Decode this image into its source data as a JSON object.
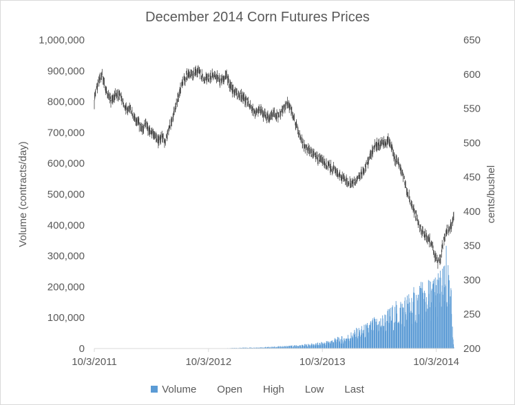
{
  "chart_data": {
    "type": "bar+stock",
    "title": "December 2014 Corn Futures Prices",
    "ylabel_left": "Volume (contracts/day)",
    "ylabel_right": "cents/bushel",
    "xlabel": "",
    "left_axis": {
      "min": 0,
      "max": 1000000,
      "ticks": [
        0,
        100000,
        200000,
        300000,
        400000,
        500000,
        600000,
        700000,
        800000,
        900000,
        1000000
      ],
      "tick_labels": [
        "0",
        "100,000",
        "200,000",
        "300,000",
        "400,000",
        "500,000",
        "600,000",
        "700,000",
        "800,000",
        "900,000",
        "1,000,000"
      ]
    },
    "right_axis": {
      "min": 200,
      "max": 650,
      "ticks": [
        200,
        250,
        300,
        350,
        400,
        450,
        500,
        550,
        600,
        650
      ],
      "tick_labels": [
        "200",
        "250",
        "300",
        "350",
        "400",
        "450",
        "500",
        "550",
        "600",
        "650"
      ]
    },
    "x_axis": {
      "start": "2011-10-03",
      "end": "2014-11-28",
      "ticks": [
        "2011-10-03",
        "2012-10-03",
        "2013-10-03",
        "2014-10-03"
      ],
      "tick_labels": [
        "10/3/2011",
        "10/3/2012",
        "10/3/2013",
        "10/3/2014"
      ]
    },
    "gridlines": false,
    "legend": {
      "position": "bottom",
      "entries": [
        {
          "name": "Volume",
          "color": "#5b9bd5"
        },
        {
          "name": "Open",
          "color": ""
        },
        {
          "name": "High",
          "color": ""
        },
        {
          "name": "Low",
          "color": ""
        },
        {
          "name": "Last",
          "color": ""
        }
      ]
    },
    "colors": {
      "volume": "#5b9bd5",
      "price": "#404040"
    },
    "price_path": [
      [
        "2011-10-03",
        560
      ],
      [
        "2011-10-10",
        580
      ],
      [
        "2011-10-20",
        592
      ],
      [
        "2011-10-28",
        600
      ],
      [
        "2011-11-10",
        575
      ],
      [
        "2011-11-25",
        562
      ],
      [
        "2011-12-10",
        570
      ],
      [
        "2011-12-28",
        568
      ],
      [
        "2012-01-10",
        552
      ],
      [
        "2012-01-25",
        548
      ],
      [
        "2012-02-05",
        540
      ],
      [
        "2012-02-20",
        530
      ],
      [
        "2012-03-05",
        518
      ],
      [
        "2012-03-15",
        528
      ],
      [
        "2012-03-28",
        515
      ],
      [
        "2012-04-05",
        512
      ],
      [
        "2012-04-15",
        508
      ],
      [
        "2012-04-25",
        503
      ],
      [
        "2012-05-05",
        510
      ],
      [
        "2012-05-15",
        502
      ],
      [
        "2012-05-28",
        518
      ],
      [
        "2012-06-10",
        535
      ],
      [
        "2012-06-25",
        560
      ],
      [
        "2012-07-05",
        580
      ],
      [
        "2012-07-15",
        590
      ],
      [
        "2012-07-25",
        598
      ],
      [
        "2012-08-05",
        602
      ],
      [
        "2012-08-15",
        600
      ],
      [
        "2012-08-28",
        605
      ],
      [
        "2012-09-10",
        600
      ],
      [
        "2012-09-20",
        593
      ],
      [
        "2012-10-03",
        595
      ],
      [
        "2012-10-15",
        598
      ],
      [
        "2012-11-01",
        594
      ],
      [
        "2012-11-15",
        590
      ],
      [
        "2012-11-30",
        598
      ],
      [
        "2012-12-10",
        585
      ],
      [
        "2012-12-20",
        575
      ],
      [
        "2013-01-05",
        570
      ],
      [
        "2013-01-20",
        568
      ],
      [
        "2013-02-05",
        560
      ],
      [
        "2013-02-15",
        552
      ],
      [
        "2013-03-01",
        545
      ],
      [
        "2013-03-15",
        550
      ],
      [
        "2013-03-31",
        540
      ],
      [
        "2013-04-15",
        536
      ],
      [
        "2013-04-30",
        545
      ],
      [
        "2013-05-15",
        538
      ],
      [
        "2013-05-31",
        548
      ],
      [
        "2013-06-10",
        560
      ],
      [
        "2013-06-20",
        552
      ],
      [
        "2013-07-01",
        540
      ],
      [
        "2013-07-15",
        520
      ],
      [
        "2013-08-01",
        500
      ],
      [
        "2013-08-15",
        492
      ],
      [
        "2013-09-01",
        485
      ],
      [
        "2013-09-15",
        478
      ],
      [
        "2013-10-03",
        472
      ],
      [
        "2013-10-20",
        468
      ],
      [
        "2013-11-05",
        462
      ],
      [
        "2013-11-20",
        456
      ],
      [
        "2013-12-05",
        450
      ],
      [
        "2013-12-20",
        446
      ],
      [
        "2014-01-05",
        440
      ],
      [
        "2014-01-20",
        448
      ],
      [
        "2014-02-05",
        455
      ],
      [
        "2014-02-20",
        466
      ],
      [
        "2014-03-05",
        482
      ],
      [
        "2014-03-20",
        495
      ],
      [
        "2014-04-05",
        498
      ],
      [
        "2014-04-20",
        500
      ],
      [
        "2014-04-30",
        504
      ],
      [
        "2014-05-10",
        500
      ],
      [
        "2014-05-20",
        480
      ],
      [
        "2014-06-05",
        468
      ],
      [
        "2014-06-20",
        450
      ],
      [
        "2014-07-05",
        425
      ],
      [
        "2014-07-20",
        405
      ],
      [
        "2014-08-05",
        385
      ],
      [
        "2014-08-20",
        370
      ],
      [
        "2014-09-05",
        362
      ],
      [
        "2014-09-20",
        350
      ],
      [
        "2014-10-01",
        332
      ],
      [
        "2014-10-08",
        326
      ],
      [
        "2014-10-15",
        330
      ],
      [
        "2014-10-25",
        355
      ],
      [
        "2014-11-05",
        372
      ],
      [
        "2014-11-15",
        376
      ],
      [
        "2014-11-22",
        382
      ],
      [
        "2014-11-28",
        392
      ]
    ],
    "volume_path": [
      [
        "2012-12-01",
        1000
      ],
      [
        "2013-01-15",
        2000
      ],
      [
        "2013-03-01",
        3000
      ],
      [
        "2013-04-15",
        4000
      ],
      [
        "2013-06-01",
        6000
      ],
      [
        "2013-07-15",
        8000
      ],
      [
        "2013-09-01",
        12000
      ],
      [
        "2013-10-03",
        15000
      ],
      [
        "2013-11-15",
        25000
      ],
      [
        "2013-12-15",
        30000
      ],
      [
        "2014-01-15",
        45000
      ],
      [
        "2014-02-15",
        55000
      ],
      [
        "2014-03-15",
        70000
      ],
      [
        "2014-04-15",
        80000
      ],
      [
        "2014-05-15",
        100000
      ],
      [
        "2014-06-15",
        120000
      ],
      [
        "2014-07-15",
        135000
      ],
      [
        "2014-08-15",
        150000
      ],
      [
        "2014-09-15",
        160000
      ],
      [
        "2014-10-10",
        180000
      ],
      [
        "2014-11-05",
        190000
      ],
      [
        "2014-11-20",
        140000
      ],
      [
        "2014-11-28",
        5000
      ]
    ],
    "volume_peaks": [
      [
        "2014-07-05",
        300000
      ],
      [
        "2014-08-20",
        215000
      ],
      [
        "2014-09-30",
        230000
      ],
      [
        "2014-10-25",
        255000
      ],
      [
        "2014-11-04",
        333000
      ],
      [
        "2014-11-10",
        270000
      ]
    ]
  }
}
